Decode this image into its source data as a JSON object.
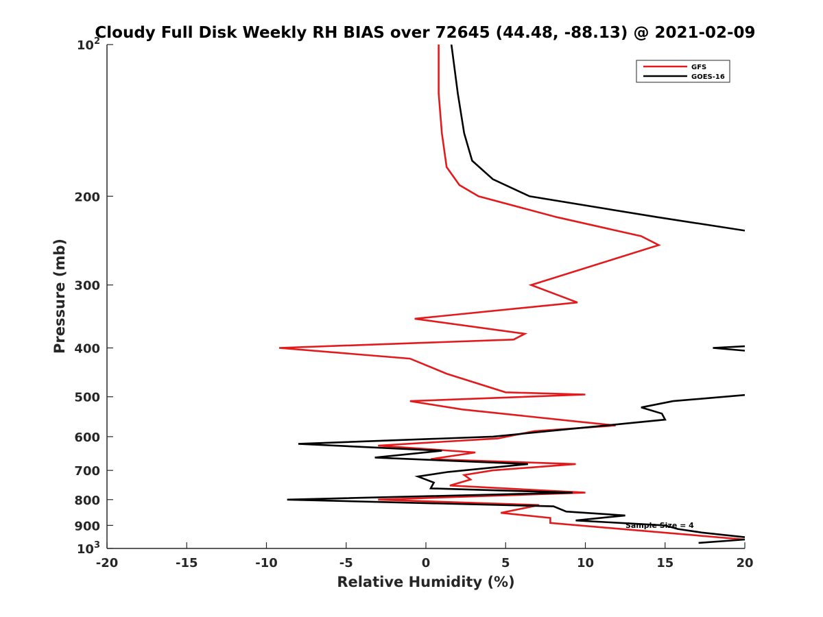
{
  "chart_data": {
    "type": "line",
    "orientation": "vertical-profile",
    "title": "Cloudy Full Disk Weekly RH BIAS over 72645 (44.48, -88.13) @ 2021-02-09",
    "xlabel": "Relative Humidity (%)",
    "ylabel": "Pressure (mb)",
    "xlim": [
      -20,
      20
    ],
    "ylim": [
      100,
      1000
    ],
    "y_scale": "log",
    "y_reversed": true,
    "grid": false,
    "legend_position": "top-right",
    "x_ticks": [
      "-20",
      "-15",
      "-10",
      "-5",
      "0",
      "5",
      "10",
      "15",
      "20"
    ],
    "y_ticks": [
      {
        "value": 100,
        "base": "10",
        "exp": "2"
      },
      {
        "value": 200,
        "label": "200"
      },
      {
        "value": 300,
        "label": "300"
      },
      {
        "value": 400,
        "label": "400"
      },
      {
        "value": 500,
        "label": "500"
      },
      {
        "value": 600,
        "label": "600"
      },
      {
        "value": 700,
        "label": "700"
      },
      {
        "value": 800,
        "label": "800"
      },
      {
        "value": 900,
        "label": "900"
      },
      {
        "value": 1000,
        "base": "10",
        "exp": "3"
      }
    ],
    "annotation": "Sample Size = 4",
    "series": [
      {
        "name": "GFS",
        "color": "#e31a1c",
        "points": [
          [
            0.8,
            100
          ],
          [
            0.8,
            125
          ],
          [
            1.0,
            150
          ],
          [
            1.3,
            175
          ],
          [
            2.1,
            190
          ],
          [
            3.3,
            200
          ],
          [
            8.2,
            220
          ],
          [
            13.5,
            240
          ],
          [
            14.6,
            250
          ],
          [
            6.6,
            300
          ],
          [
            9.5,
            325
          ],
          [
            -0.7,
            350
          ],
          [
            6.2,
            375
          ],
          [
            5.5,
            385
          ],
          [
            -9.2,
            400
          ],
          [
            -1.0,
            420
          ],
          [
            1.3,
            450
          ],
          [
            5.0,
            490
          ],
          [
            10.0,
            495
          ],
          [
            -1.0,
            510
          ],
          [
            2.3,
            530
          ],
          [
            9.5,
            560
          ],
          [
            11.9,
            570
          ],
          [
            6.8,
            585
          ],
          [
            4.5,
            605
          ],
          [
            -3.0,
            625
          ],
          [
            3.1,
            645
          ],
          [
            0.3,
            665
          ],
          [
            9.4,
            680
          ],
          [
            4.2,
            700
          ],
          [
            2.4,
            715
          ],
          [
            2.8,
            730
          ],
          [
            1.5,
            750
          ],
          [
            10.0,
            775
          ],
          [
            -3.0,
            800
          ],
          [
            7.1,
            820
          ],
          [
            4.7,
            850
          ],
          [
            7.8,
            870
          ],
          [
            7.8,
            890
          ],
          [
            20.0,
            960
          ]
        ]
      },
      {
        "name": "GOES-16",
        "color": "#000000",
        "segments": [
          [
            [
              1.6,
              100
            ],
            [
              2.0,
              125
            ],
            [
              2.4,
              150
            ],
            [
              2.9,
              170
            ],
            [
              4.2,
              185
            ],
            [
              6.5,
              200
            ],
            [
              14.5,
              220
            ],
            [
              20.0,
              234
            ]
          ],
          [
            [
              20.0,
              397
            ],
            [
              18.0,
              400
            ],
            [
              20.0,
              405
            ]
          ],
          [
            [
              20.0,
              496
            ],
            [
              15.5,
              510
            ],
            [
              13.5,
              525
            ],
            [
              14.8,
              540
            ],
            [
              15.0,
              555
            ],
            [
              4.2,
              600
            ],
            [
              -8.0,
              620
            ],
            [
              1.0,
              640
            ],
            [
              -3.2,
              660
            ],
            [
              6.4,
              680
            ],
            [
              1.4,
              705
            ],
            [
              -0.5,
              720
            ],
            [
              0.5,
              740
            ],
            [
              0.3,
              760
            ],
            [
              9.2,
              775
            ],
            [
              -8.7,
              800
            ],
            [
              8.0,
              825
            ],
            [
              8.8,
              845
            ],
            [
              12.5,
              860
            ],
            [
              9.4,
              880
            ],
            [
              15.0,
              900
            ],
            [
              15.8,
              915
            ],
            [
              17.3,
              930
            ],
            [
              20.0,
              950
            ]
          ],
          [
            [
              17.1,
              975
            ],
            [
              20.0,
              960
            ]
          ]
        ]
      }
    ]
  }
}
